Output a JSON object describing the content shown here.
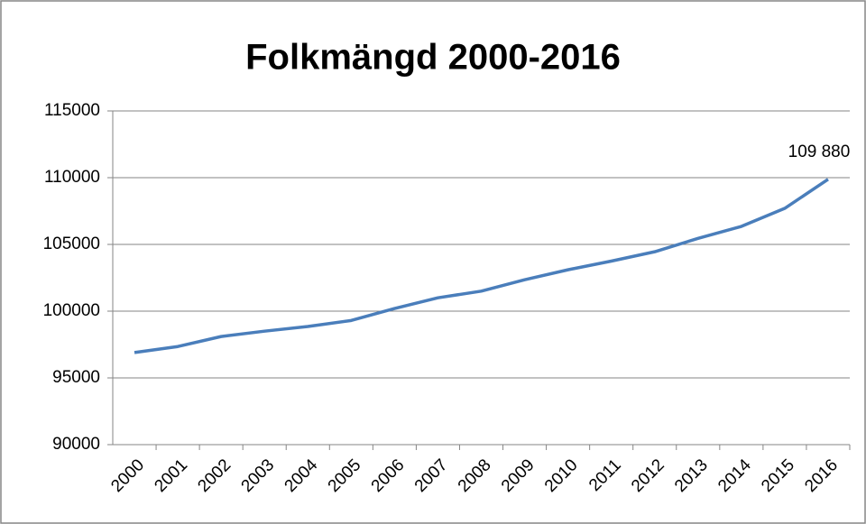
{
  "chart_data": {
    "type": "line",
    "title": "Folkmängd 2000-2016",
    "categories": [
      "2000",
      "2001",
      "2002",
      "2003",
      "2004",
      "2005",
      "2006",
      "2007",
      "2008",
      "2009",
      "2010",
      "2011",
      "2012",
      "2013",
      "2014",
      "2015",
      "2016"
    ],
    "series": [
      {
        "name": "Folkmängd",
        "color": "#4a7ebb",
        "values": [
          96900,
          97350,
          98100,
          98500,
          98850,
          99300,
          100200,
          101000,
          101500,
          102350,
          103100,
          103750,
          104450,
          105450,
          106350,
          107700,
          109880
        ],
        "value_labels": [
          null,
          null,
          null,
          null,
          null,
          null,
          null,
          null,
          null,
          null,
          null,
          null,
          null,
          null,
          null,
          null,
          "109 880"
        ]
      }
    ],
    "ylim": [
      90000,
      115000
    ],
    "yticks": [
      90000,
      95000,
      100000,
      105000,
      110000,
      115000
    ],
    "grid": true
  }
}
